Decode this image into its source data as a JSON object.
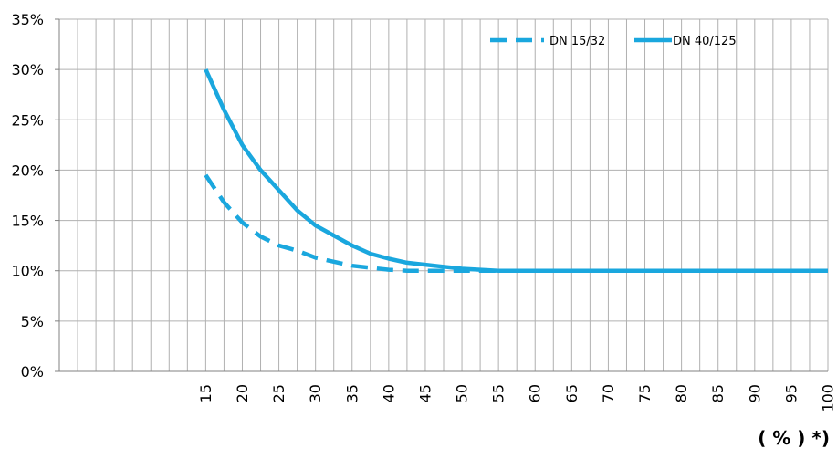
{
  "chart_data": {
    "type": "line",
    "title": "",
    "xlabel": "( % ) *)",
    "ylabel": "",
    "x_tick_labels": [
      "15",
      "20",
      "25",
      "30",
      "35",
      "40",
      "45",
      "50",
      "55",
      "60",
      "65",
      "70",
      "75",
      "80",
      "85",
      "90",
      "95",
      "100"
    ],
    "y_tick_labels": [
      "0%",
      "5%",
      "10%",
      "15%",
      "20%",
      "25%",
      "30%",
      "35%"
    ],
    "xlim": [
      -5,
      100
    ],
    "ylim": [
      0,
      35
    ],
    "grid": true,
    "legend_position": "top-right",
    "series": [
      {
        "name": "DN 15/32",
        "style": "dashed",
        "color": "#1aa7de",
        "x": [
          15,
          17.5,
          20,
          22.5,
          25,
          27.5,
          30,
          32.5,
          35,
          37.5,
          40,
          42.5,
          45,
          47.5,
          50,
          52.5,
          55,
          57.5,
          60,
          62.5,
          65,
          67.5,
          70,
          72.5,
          75,
          77.5,
          80,
          82.5,
          85,
          87.5,
          90,
          92.5,
          95,
          97.5,
          100
        ],
        "y": [
          19.5,
          16.8,
          14.8,
          13.4,
          12.5,
          12.0,
          11.3,
          10.9,
          10.5,
          10.3,
          10.1,
          10.0,
          10.0,
          10.0,
          10.0,
          10.0,
          10.0,
          10.0,
          10.0,
          10.0,
          10.0,
          10.0,
          10.0,
          10.0,
          10.0,
          10.0,
          10.0,
          10.0,
          10.0,
          10.0,
          10.0,
          10.0,
          10.0,
          10.0,
          10.0
        ]
      },
      {
        "name": "DN 40/125",
        "style": "solid",
        "color": "#1aa7de",
        "x": [
          15,
          17.5,
          20,
          22.5,
          25,
          27.5,
          30,
          32.5,
          35,
          37.5,
          40,
          42.5,
          45,
          47.5,
          50,
          52.5,
          55,
          57.5,
          60,
          62.5,
          65,
          67.5,
          70,
          72.5,
          75,
          77.5,
          80,
          82.5,
          85,
          87.5,
          90,
          92.5,
          95,
          97.5,
          100
        ],
        "y": [
          30.0,
          26.0,
          22.5,
          20.0,
          18.0,
          16.0,
          14.5,
          13.5,
          12.5,
          11.7,
          11.2,
          10.8,
          10.6,
          10.4,
          10.2,
          10.1,
          10.0,
          10.0,
          10.0,
          10.0,
          10.0,
          10.0,
          10.0,
          10.0,
          10.0,
          10.0,
          10.0,
          10.0,
          10.0,
          10.0,
          10.0,
          10.0,
          10.0,
          10.0,
          10.0
        ]
      }
    ]
  }
}
